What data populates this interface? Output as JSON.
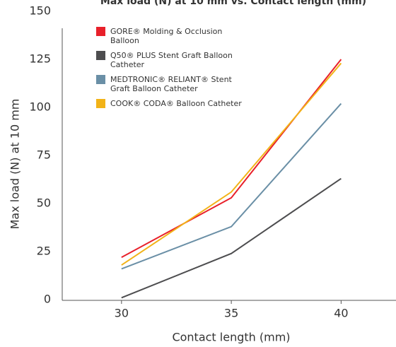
{
  "chart_data": {
    "type": "line",
    "title": "Max load (N) at 10 mm vs. Contact length (mm)",
    "x_label": "Contact length (mm)",
    "y_label": "Max load (N) at 10 mm",
    "x": [
      30,
      35,
      40
    ],
    "xlim": [
      27.3,
      42.5
    ],
    "xticks": [
      30,
      35,
      40
    ],
    "ylim": [
      0,
      150
    ],
    "yticks": [
      0,
      25,
      50,
      75,
      100,
      125,
      150
    ],
    "legend": "upper left",
    "series": [
      {
        "name": "GORE® Molding & Occlusion Balloon",
        "color": "#e8202a",
        "values": [
          22,
          53,
          125
        ]
      },
      {
        "name": "Q50® PLUS Stent Graft Balloon Catheter",
        "color": "#4d4d4f",
        "values": [
          1,
          24,
          63
        ]
      },
      {
        "name": "MEDTRONIC® RELIANT® Stent Graft Balloon Catheter",
        "color": "#6a8fa6",
        "values": [
          16,
          38,
          102
        ]
      },
      {
        "name": "COOK® CODA® Balloon Catheter",
        "color": "#f2b318",
        "values": [
          18,
          56,
          123
        ]
      }
    ]
  }
}
